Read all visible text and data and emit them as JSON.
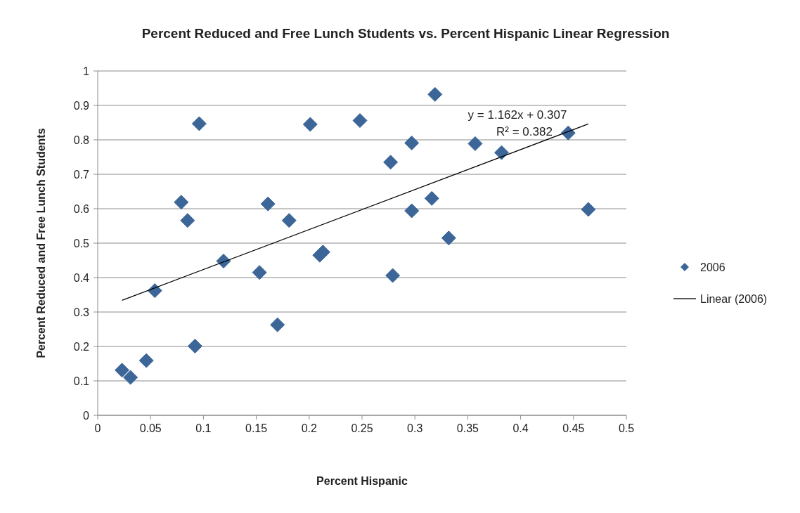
{
  "chart_data": {
    "type": "scatter",
    "title": "Percent Reduced and Free Lunch Students vs. Percent Hispanic Linear Regression",
    "xlabel": "Percent Hispanic",
    "ylabel": "Percent Reduced and Free Lunch Students",
    "xlim": [
      0,
      0.5
    ],
    "xticks": [
      0,
      0.05,
      0.1,
      0.15,
      0.2,
      0.25,
      0.3,
      0.35,
      0.4,
      0.45,
      0.5
    ],
    "ylim": [
      0,
      1
    ],
    "yticks": [
      0,
      0.1,
      0.2,
      0.3,
      0.4,
      0.5,
      0.6,
      0.7,
      0.8,
      0.9,
      1
    ],
    "grid": "y",
    "legend": "right",
    "marker": "diamond",
    "annotations": [
      "y = 1.162x + 0.307",
      "R² = 0.382"
    ],
    "series": [
      {
        "name": "2006",
        "color": "#3c6697",
        "x": [
          0.023,
          0.031,
          0.046,
          0.054,
          0.079,
          0.085,
          0.092,
          0.096,
          0.119,
          0.153,
          0.161,
          0.17,
          0.181,
          0.201,
          0.21,
          0.213,
          0.248,
          0.277,
          0.279,
          0.297,
          0.297,
          0.316,
          0.319,
          0.332,
          0.357,
          0.382,
          0.445,
          0.464
        ],
        "values": [
          0.131,
          0.11,
          0.159,
          0.362,
          0.619,
          0.566,
          0.201,
          0.847,
          0.448,
          0.415,
          0.614,
          0.263,
          0.566,
          0.845,
          0.465,
          0.474,
          0.856,
          0.735,
          0.406,
          0.594,
          0.791,
          0.63,
          0.932,
          0.515,
          0.789,
          0.763,
          0.82,
          0.598
        ]
      },
      {
        "name": "Linear (2006)",
        "type": "line",
        "color": "#000000",
        "marker": "none",
        "line_style": "solid",
        "x": [
          0.023,
          0.464
        ],
        "values": [
          0.334,
          0.846
        ]
      }
    ]
  }
}
